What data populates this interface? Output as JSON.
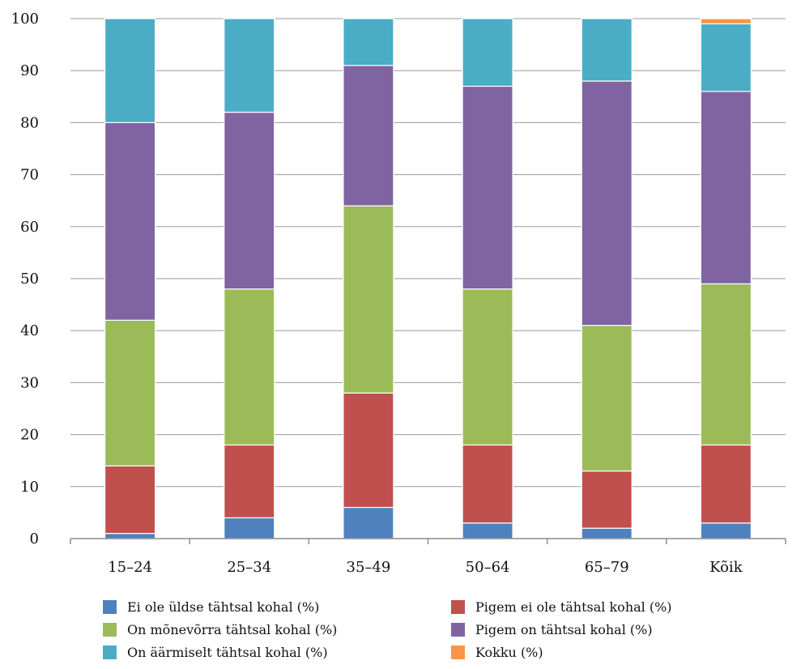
{
  "chart_data": {
    "type": "bar",
    "stacked": true,
    "categories": [
      "15–24",
      "25–34",
      "35–49",
      "50–64",
      "65–79",
      "Kõik"
    ],
    "series": [
      {
        "name": "Ei ole üldse tähtsal kohal (%)",
        "color": "#4F81BD",
        "values": [
          1,
          4,
          6,
          3,
          2,
          3
        ]
      },
      {
        "name": "Pigem ei ole tähtsal kohal (%)",
        "color": "#C0504D",
        "values": [
          13,
          14,
          22,
          15,
          11,
          15
        ]
      },
      {
        "name": "On mõnevõrra tähtsal kohal (%)",
        "color": "#9BBB59",
        "values": [
          28,
          30,
          36,
          30,
          28,
          31
        ]
      },
      {
        "name": "Pigem on tähtsal kohal (%)",
        "color": "#8064A2",
        "values": [
          38,
          34,
          27,
          39,
          47,
          37
        ]
      },
      {
        "name": "On äärmiselt tähtsal kohal (%)",
        "color": "#4BACC6",
        "values": [
          20,
          18,
          9,
          13,
          12,
          13
        ]
      },
      {
        "name": "Kokku (%)",
        "color": "#F79646",
        "values": [
          0,
          0,
          0,
          0,
          0,
          1
        ]
      }
    ],
    "ylim": [
      0,
      100
    ],
    "yticks": [
      0,
      10,
      20,
      30,
      40,
      50,
      60,
      70,
      80,
      90,
      100
    ],
    "grid": true,
    "legend_position": "bottom"
  }
}
